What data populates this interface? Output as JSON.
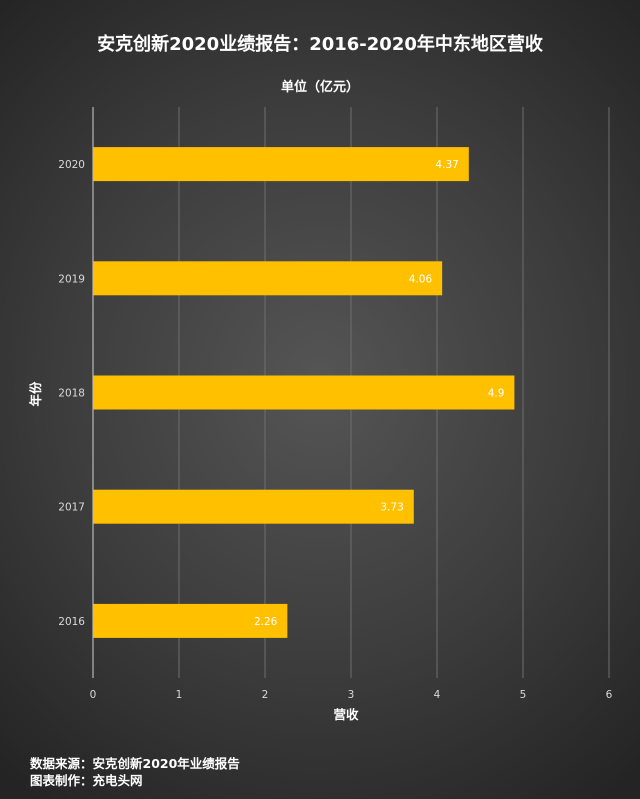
{
  "title": "安克创新2020业绩报告：2016-2020年中东地区营收",
  "subtitle": "单位（亿元）",
  "footer": {
    "source": "数据来源：安克创新2020年业绩报告",
    "credit": "图表制作：充电头网"
  },
  "colors": {
    "bar": "#ffc000",
    "grid": "#6e6e6e",
    "tick_text": "#d9d9d9",
    "label_text": "#ffffff"
  },
  "chart_data": {
    "type": "bar",
    "orientation": "horizontal",
    "categories": [
      "2020",
      "2019",
      "2018",
      "2017",
      "2016"
    ],
    "values": [
      4.37,
      4.06,
      4.9,
      3.73,
      2.26
    ],
    "data_labels": [
      "4.37",
      "4.06",
      "4.9",
      "3.73",
      "2.26"
    ],
    "xlabel": "营收",
    "ylabel": "年份",
    "xlim": [
      0,
      6
    ],
    "xticks": [
      "0",
      "1",
      "2",
      "3",
      "4",
      "5",
      "6"
    ],
    "grid": "vertical",
    "legend": "none"
  }
}
